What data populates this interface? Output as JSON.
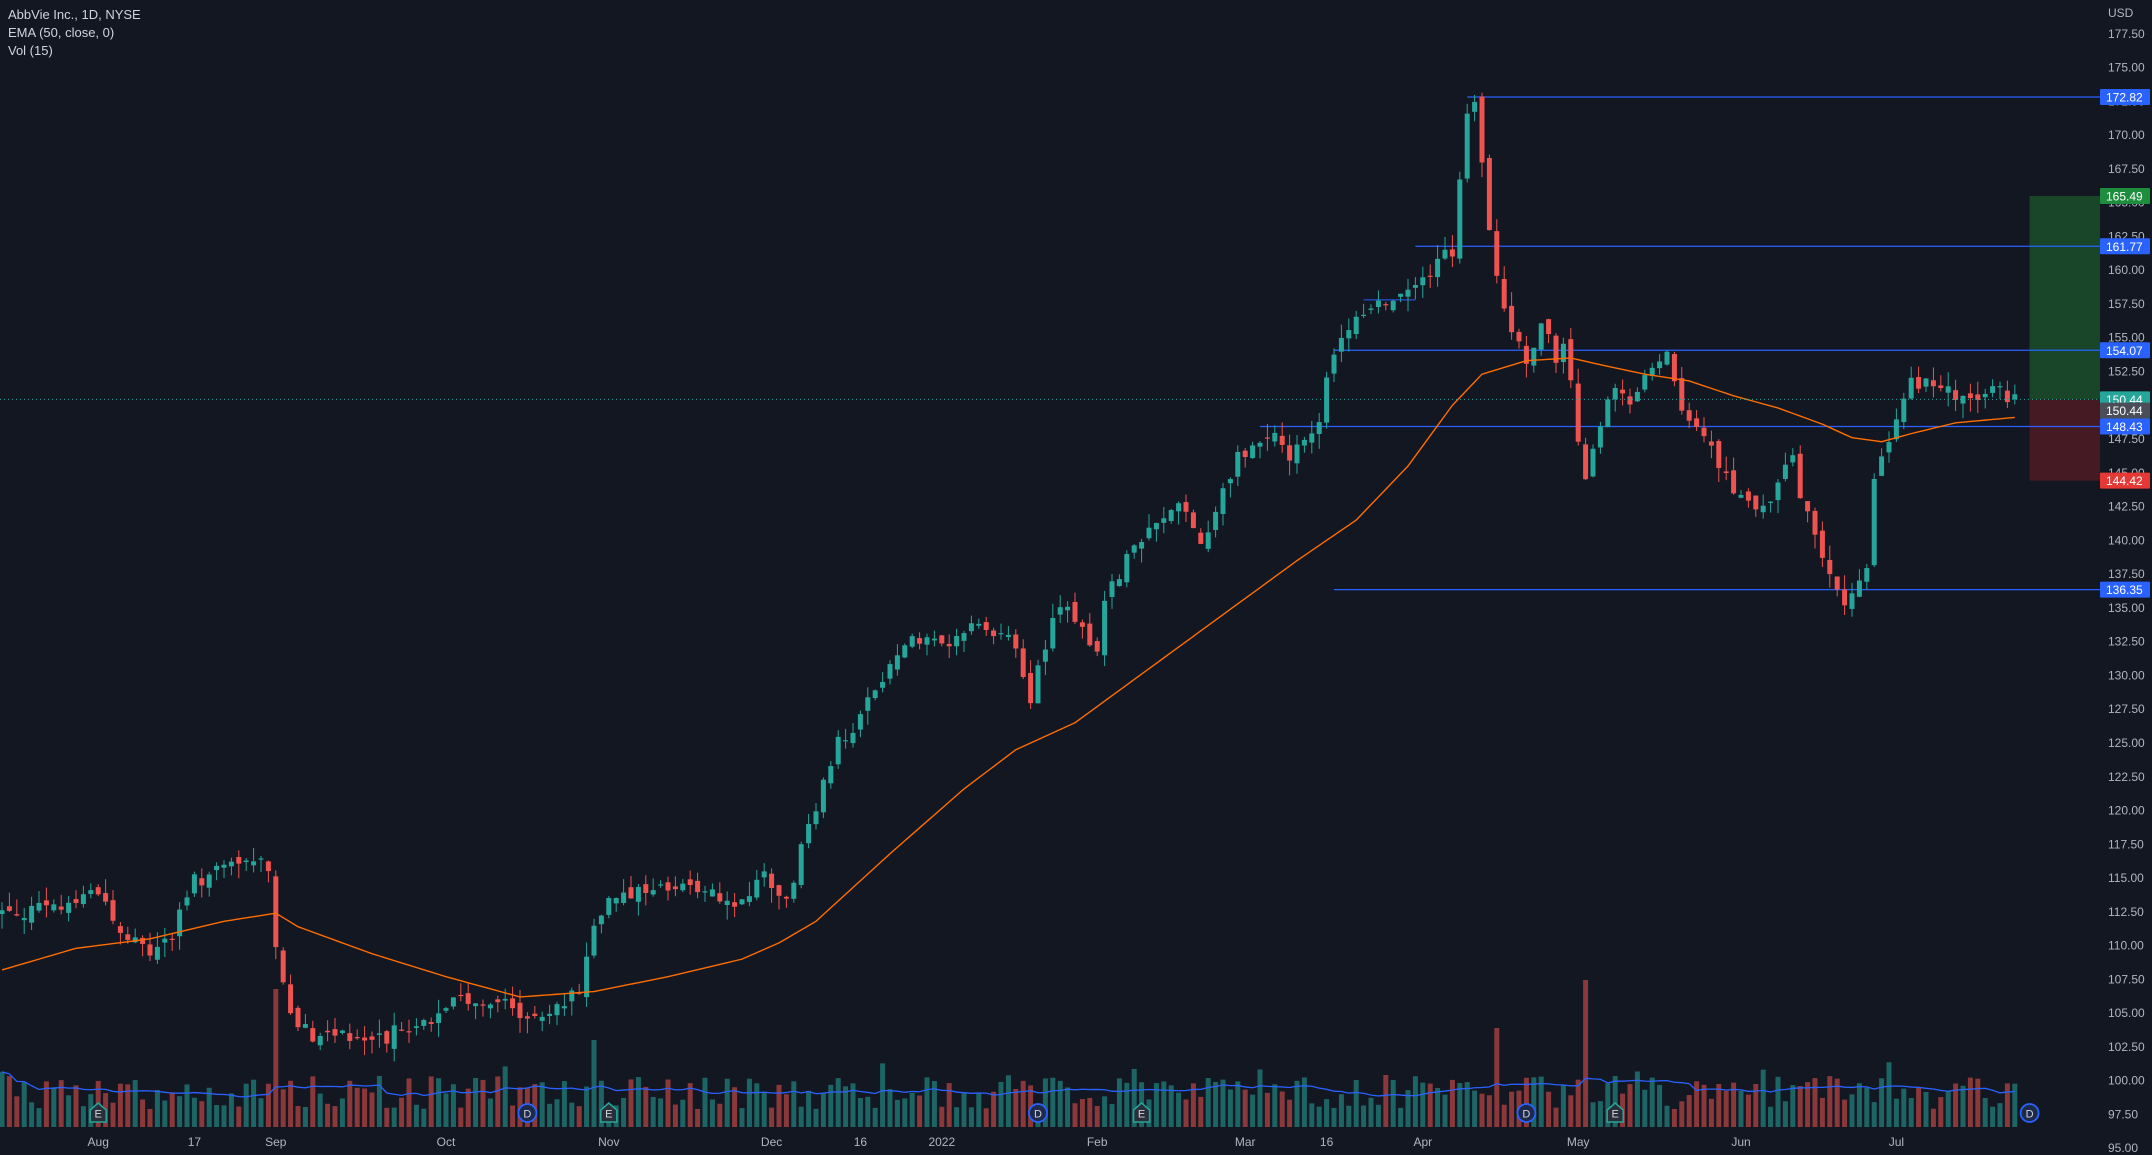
{
  "legend": {
    "symbol": "AbbVie Inc., 1D, NYSE",
    "ema": "EMA (50, close, 0)",
    "vol": "Vol (15)"
  },
  "currency_label": "USD",
  "colors": {
    "background": "#131722",
    "up": "#26a69a",
    "down": "#ef5350",
    "ema": "#ff6d00",
    "level_line": "#2962ff",
    "volume_ma": "#2962ff",
    "text": "#b2b5be",
    "target_zone": "#1b4d2a",
    "stop_zone": "#4d1b22"
  },
  "chart_data": {
    "type": "candlestick",
    "title": "AbbVie Inc., 1D, NYSE",
    "ylabel": "USD",
    "ylim": [
      94.5,
      180.0
    ],
    "y_ticks": [
      "95.00",
      "97.50",
      "100.00",
      "102.50",
      "105.00",
      "107.50",
      "110.00",
      "112.50",
      "115.00",
      "117.50",
      "120.00",
      "122.50",
      "125.00",
      "127.50",
      "130.00",
      "132.50",
      "135.00",
      "137.50",
      "140.00",
      "142.50",
      "145.00",
      "147.50",
      "150.00",
      "152.50",
      "155.00",
      "157.50",
      "160.00",
      "162.50",
      "165.00",
      "167.50",
      "170.00",
      "172.50",
      "175.00",
      "177.50"
    ],
    "x_ticks": [
      {
        "label": "Aug",
        "bar": 13
      },
      {
        "label": "17",
        "bar": 26
      },
      {
        "label": "Sep",
        "bar": 37
      },
      {
        "label": "Oct",
        "bar": 60
      },
      {
        "label": "Nov",
        "bar": 82
      },
      {
        "label": "Dec",
        "bar": 104
      },
      {
        "label": "16",
        "bar": 116
      },
      {
        "label": "2022",
        "bar": 127
      },
      {
        "label": "Feb",
        "bar": 148
      },
      {
        "label": "Mar",
        "bar": 168
      },
      {
        "label": "16",
        "bar": 179
      },
      {
        "label": "Apr",
        "bar": 192
      },
      {
        "label": "May",
        "bar": 213
      },
      {
        "label": "Jun",
        "bar": 235
      },
      {
        "label": "Jul",
        "bar": 256
      }
    ],
    "price_control_points": [
      [
        0,
        112.5
      ],
      [
        8,
        112.8
      ],
      [
        13,
        114.3
      ],
      [
        16,
        110.8
      ],
      [
        20,
        109.6
      ],
      [
        23,
        110.8
      ],
      [
        26,
        114.8
      ],
      [
        30,
        115.6
      ],
      [
        33,
        116.2
      ],
      [
        36,
        116.0
      ],
      [
        37,
        109.8
      ],
      [
        39,
        104.9
      ],
      [
        42,
        103.5
      ],
      [
        45,
        103.6
      ],
      [
        50,
        102.8
      ],
      [
        54,
        103.8
      ],
      [
        58,
        104.6
      ],
      [
        62,
        106.0
      ],
      [
        66,
        106.1
      ],
      [
        70,
        104.9
      ],
      [
        74,
        105.4
      ],
      [
        78,
        106.5
      ],
      [
        80,
        112.0
      ],
      [
        83,
        114.0
      ],
      [
        88,
        113.9
      ],
      [
        92,
        114.1
      ],
      [
        96,
        114.4
      ],
      [
        99,
        112.6
      ],
      [
        103,
        115.0
      ],
      [
        106,
        113.2
      ],
      [
        108,
        117.0
      ],
      [
        110,
        120.5
      ],
      [
        113,
        125.0
      ],
      [
        116,
        127.0
      ],
      [
        120,
        130.5
      ],
      [
        123,
        133.0
      ],
      [
        127,
        132.2
      ],
      [
        130,
        133.5
      ],
      [
        134,
        133.5
      ],
      [
        136,
        133.0
      ],
      [
        139,
        128.5
      ],
      [
        141,
        132.0
      ],
      [
        143,
        135.5
      ],
      [
        148,
        132.0
      ],
      [
        149,
        136.0
      ],
      [
        152,
        138.5
      ],
      [
        155,
        140.5
      ],
      [
        158,
        142.0
      ],
      [
        160,
        142.5
      ],
      [
        162,
        139.5
      ],
      [
        164,
        142.5
      ],
      [
        167,
        146.3
      ],
      [
        170,
        147.0
      ],
      [
        172,
        148.0
      ],
      [
        174,
        146.0
      ],
      [
        176,
        147.5
      ],
      [
        178,
        149.0
      ],
      [
        180,
        154.0
      ],
      [
        182,
        156.0
      ],
      [
        186,
        157.5
      ],
      [
        190,
        159.0
      ],
      [
        193,
        160.0
      ],
      [
        196,
        161.5
      ],
      [
        197,
        166.5
      ],
      [
        198,
        171.5
      ],
      [
        199,
        172.6
      ],
      [
        200,
        168.5
      ],
      [
        201,
        163.5
      ],
      [
        202,
        159.0
      ],
      [
        204,
        156.0
      ],
      [
        206,
        153.5
      ],
      [
        208,
        156.0
      ],
      [
        210,
        153.5
      ],
      [
        211,
        154.5
      ],
      [
        212,
        152.0
      ],
      [
        213,
        147.3
      ],
      [
        214,
        145.0
      ],
      [
        216,
        148.5
      ],
      [
        218,
        151.5
      ],
      [
        220,
        150.5
      ],
      [
        223,
        153.0
      ],
      [
        225,
        153.5
      ],
      [
        227,
        150.0
      ],
      [
        230,
        148.0
      ],
      [
        232,
        145.5
      ],
      [
        235,
        143.0
      ],
      [
        238,
        142.0
      ],
      [
        240,
        144.0
      ],
      [
        242,
        146.0
      ],
      [
        243,
        143.0
      ],
      [
        244,
        142.0
      ],
      [
        246,
        139.0
      ],
      [
        248,
        136.5
      ],
      [
        249,
        135.3
      ],
      [
        250,
        136.2
      ],
      [
        252,
        138.5
      ],
      [
        253,
        144.0
      ],
      [
        255,
        147.5
      ],
      [
        258,
        151.5
      ],
      [
        261,
        152.0
      ],
      [
        264,
        150.5
      ],
      [
        267,
        150.3
      ],
      [
        269,
        151.0
      ],
      [
        271,
        150.8
      ],
      [
        272,
        150.44
      ]
    ],
    "ema_control_points": [
      [
        0,
        108.2
      ],
      [
        10,
        109.8
      ],
      [
        20,
        110.5
      ],
      [
        30,
        111.8
      ],
      [
        37,
        112.4
      ],
      [
        40,
        111.4
      ],
      [
        50,
        109.4
      ],
      [
        60,
        107.7
      ],
      [
        70,
        106.2
      ],
      [
        80,
        106.6
      ],
      [
        90,
        107.7
      ],
      [
        100,
        109.0
      ],
      [
        105,
        110.2
      ],
      [
        110,
        111.8
      ],
      [
        120,
        116.8
      ],
      [
        130,
        121.6
      ],
      [
        137,
        124.5
      ],
      [
        145,
        126.5
      ],
      [
        155,
        130.5
      ],
      [
        165,
        134.5
      ],
      [
        175,
        138.5
      ],
      [
        183,
        141.5
      ],
      [
        190,
        145.5
      ],
      [
        196,
        150.0
      ],
      [
        200,
        152.3
      ],
      [
        206,
        153.3
      ],
      [
        212,
        153.5
      ],
      [
        216,
        153.0
      ],
      [
        222,
        152.3
      ],
      [
        228,
        151.8
      ],
      [
        234,
        150.7
      ],
      [
        240,
        149.8
      ],
      [
        246,
        148.6
      ],
      [
        250,
        147.6
      ],
      [
        254,
        147.3
      ],
      [
        258,
        147.9
      ],
      [
        264,
        148.7
      ],
      [
        272,
        149.1
      ]
    ],
    "volume_ylim": [
      0,
      100
    ],
    "volume_range_bars": [
      0,
      272
    ],
    "volume_spikes": [
      {
        "bar": 37,
        "value": 92
      },
      {
        "bar": 80,
        "value": 58
      },
      {
        "bar": 202,
        "value": 66
      },
      {
        "bar": 214,
        "value": 98
      }
    ],
    "horizontal_levels": [
      {
        "value": 172.82,
        "label": "172.82",
        "from_bar": 198
      },
      {
        "value": 161.77,
        "label": "161.77",
        "from_bar": 191
      },
      {
        "value": 154.07,
        "label": "154.07",
        "from_bar": 180
      },
      {
        "value": 148.43,
        "label": "148.43",
        "from_bar": 170
      },
      {
        "value": 136.35,
        "label": "136.35",
        "from_bar": 180
      }
    ],
    "position_tool": {
      "entry": 150.44,
      "target": 165.49,
      "stop": 144.42,
      "from_bar": 274,
      "to_bar": 284
    },
    "price_tags": [
      {
        "value": 172.82,
        "label": "172.82",
        "kind": "level"
      },
      {
        "value": 165.49,
        "label": "165.49",
        "kind": "target"
      },
      {
        "value": 161.77,
        "label": "161.77",
        "kind": "level"
      },
      {
        "value": 154.07,
        "label": "154.07",
        "kind": "level"
      },
      {
        "value": 150.44,
        "label": "150.44",
        "kind": "close"
      },
      {
        "value": 149.6,
        "label": "150.44",
        "kind": "last"
      },
      {
        "value": 148.43,
        "label": "148.43",
        "kind": "level"
      },
      {
        "value": 144.42,
        "label": "144.42",
        "kind": "stop"
      },
      {
        "value": 136.35,
        "label": "136.35",
        "kind": "level"
      }
    ],
    "events": [
      {
        "bar": 13,
        "letter": "E",
        "kind": "earnings"
      },
      {
        "bar": 71,
        "letter": "D",
        "kind": "dividend"
      },
      {
        "bar": 82,
        "letter": "E",
        "kind": "earnings"
      },
      {
        "bar": 140,
        "letter": "D",
        "kind": "dividend"
      },
      {
        "bar": 154,
        "letter": "E",
        "kind": "earnings"
      },
      {
        "bar": 206,
        "letter": "D",
        "kind": "dividend"
      },
      {
        "bar": 218,
        "letter": "E",
        "kind": "earnings"
      },
      {
        "bar": 274,
        "letter": "D",
        "kind": "dividend"
      }
    ]
  }
}
